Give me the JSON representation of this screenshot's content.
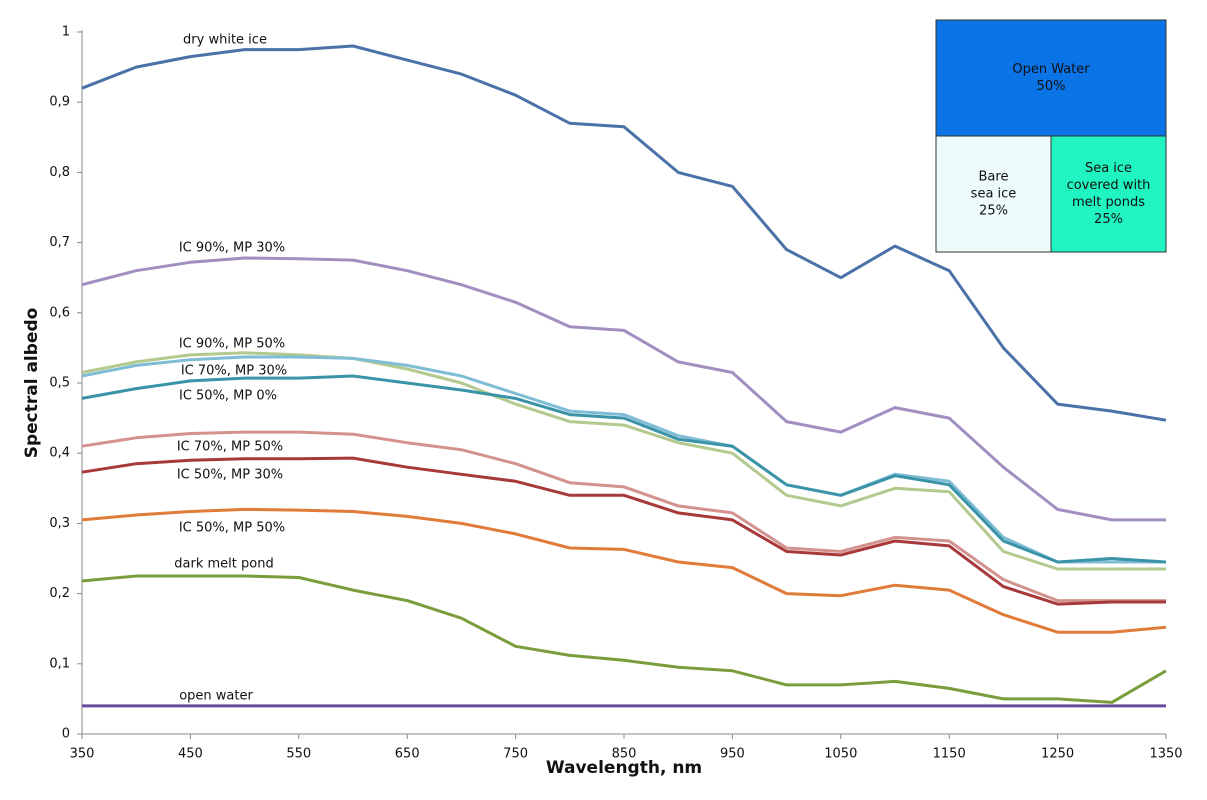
{
  "chart_data": {
    "type": "line",
    "x_label": "Wavelength, nm",
    "y_label": "Spectral albedo",
    "x": [
      350,
      400,
      450,
      500,
      550,
      600,
      650,
      700,
      750,
      800,
      850,
      900,
      950,
      1000,
      1050,
      1100,
      1150,
      1200,
      1250,
      1300,
      1350
    ],
    "xlim": [
      350,
      1350
    ],
    "xticks": [
      350,
      450,
      550,
      650,
      750,
      850,
      950,
      1050,
      1150,
      1250,
      1350
    ],
    "ylim": [
      0,
      1
    ],
    "yticks": [
      {
        "value": 0,
        "label": "0"
      },
      {
        "value": 0.1,
        "label": "0,1"
      },
      {
        "value": 0.2,
        "label": "0,2"
      },
      {
        "value": 0.3,
        "label": "0,3"
      },
      {
        "value": 0.4,
        "label": "0,4"
      },
      {
        "value": 0.5,
        "label": "0,5"
      },
      {
        "value": 0.6,
        "label": "0,6"
      },
      {
        "value": 0.7,
        "label": "0,7"
      },
      {
        "value": 0.8,
        "label": "0,8"
      },
      {
        "value": 0.9,
        "label": "0,9"
      },
      {
        "value": 1,
        "label": "1"
      }
    ],
    "grid": false,
    "series": [
      {
        "name": "dry white ice",
        "color": "#4a72a8",
        "values": [
          0.92,
          0.95,
          0.965,
          0.975,
          0.975,
          0.98,
          0.96,
          0.94,
          0.91,
          0.87,
          0.865,
          0.8,
          0.78,
          0.69,
          0.65,
          0.695,
          0.66,
          0.55,
          0.47,
          0.46,
          0.447
        ]
      },
      {
        "name": "IC 90%, MP 30%",
        "color": "#a08fc0",
        "values": [
          0.64,
          0.66,
          0.672,
          0.678,
          0.677,
          0.675,
          0.66,
          0.64,
          0.615,
          0.58,
          0.575,
          0.53,
          0.515,
          0.445,
          0.43,
          0.465,
          0.45,
          0.38,
          0.32,
          0.305,
          0.305
        ]
      },
      {
        "name": "IC 90%, MP 50%",
        "color": "#b3c98e",
        "values": [
          0.515,
          0.53,
          0.54,
          0.543,
          0.54,
          0.535,
          0.52,
          0.5,
          0.47,
          0.445,
          0.44,
          0.415,
          0.4,
          0.34,
          0.325,
          0.35,
          0.345,
          0.26,
          0.235,
          0.235,
          0.235
        ]
      },
      {
        "name": "IC 70%, MP 30%",
        "color": "#7fbcd6",
        "values": [
          0.51,
          0.525,
          0.533,
          0.537,
          0.537,
          0.535,
          0.525,
          0.51,
          0.485,
          0.46,
          0.455,
          0.425,
          0.41,
          0.355,
          0.34,
          0.37,
          0.36,
          0.28,
          0.245,
          0.245,
          0.245
        ]
      },
      {
        "name": "IC 50%, MP 0%",
        "color": "#3b93a8",
        "values": [
          0.478,
          0.492,
          0.503,
          0.507,
          0.507,
          0.51,
          0.5,
          0.49,
          0.478,
          0.455,
          0.45,
          0.42,
          0.41,
          0.355,
          0.34,
          0.368,
          0.355,
          0.275,
          0.245,
          0.25,
          0.245
        ]
      },
      {
        "name": "IC 70%, MP 50%",
        "color": "#d4928e",
        "values": [
          0.41,
          0.422,
          0.428,
          0.43,
          0.43,
          0.427,
          0.415,
          0.405,
          0.385,
          0.358,
          0.352,
          0.325,
          0.315,
          0.265,
          0.26,
          0.28,
          0.275,
          0.22,
          0.19,
          0.19,
          0.19
        ]
      },
      {
        "name": "IC 50%, MP 30%",
        "color": "#a8393a",
        "values": [
          0.373,
          0.385,
          0.39,
          0.392,
          0.392,
          0.393,
          0.38,
          0.37,
          0.36,
          0.34,
          0.34,
          0.315,
          0.305,
          0.26,
          0.255,
          0.275,
          0.268,
          0.21,
          0.185,
          0.188,
          0.188
        ]
      },
      {
        "name": "IC 50%, MP 50%",
        "color": "#e07b39",
        "values": [
          0.305,
          0.312,
          0.317,
          0.32,
          0.319,
          0.317,
          0.31,
          0.3,
          0.285,
          0.265,
          0.263,
          0.245,
          0.237,
          0.2,
          0.197,
          0.212,
          0.205,
          0.17,
          0.145,
          0.145,
          0.152
        ]
      },
      {
        "name": "dark melt pond",
        "color": "#7a9d3c",
        "values": [
          0.218,
          0.225,
          0.225,
          0.225,
          0.223,
          0.205,
          0.19,
          0.165,
          0.125,
          0.112,
          0.105,
          0.095,
          0.09,
          0.07,
          0.07,
          0.075,
          0.065,
          0.05,
          0.05,
          0.045,
          0.09
        ]
      },
      {
        "name": "open water",
        "color": "#6a4a9a",
        "values": [
          0.04,
          0.04,
          0.04,
          0.04,
          0.04,
          0.04,
          0.04,
          0.04,
          0.04,
          0.04,
          0.04,
          0.04,
          0.04,
          0.04,
          0.04,
          0.04,
          0.04,
          0.04,
          0.04,
          0.04,
          0.04
        ]
      }
    ],
    "inset": {
      "open_water": {
        "lines": [
          "Open Water",
          "50%"
        ],
        "color": "#0a74e6"
      },
      "bare_ice": {
        "lines": [
          "Bare",
          "sea ice",
          "25%"
        ],
        "color": "#eefbfb"
      },
      "melt_ponds": {
        "lines": [
          "Sea ice",
          "covered with",
          "melt ponds",
          "25%"
        ],
        "color": "#20f4c0"
      }
    }
  }
}
